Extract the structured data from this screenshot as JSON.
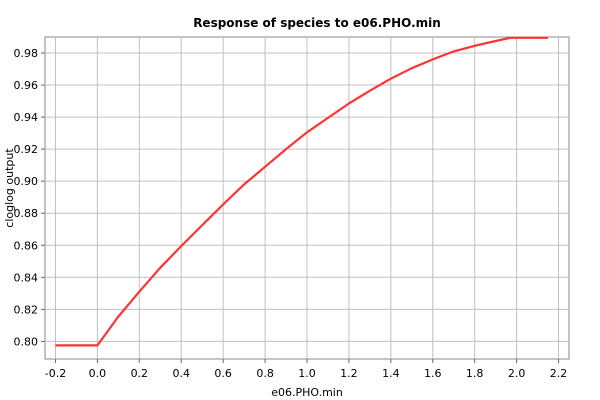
{
  "chart_data": {
    "type": "line",
    "title": "Response of species to e06.PHO.min",
    "xlabel": "e06.PHO.min",
    "ylabel": "cloglog output",
    "xlim": [
      -0.25,
      2.25
    ],
    "ylim": [
      0.789,
      0.99
    ],
    "xticks": [
      -0.2,
      0.0,
      0.2,
      0.4,
      0.6,
      0.8,
      1.0,
      1.2,
      1.4,
      1.6,
      1.8,
      2.0,
      2.2
    ],
    "xtick_labels": [
      "-0.2",
      "0.0",
      "0.2",
      "0.4",
      "0.6",
      "0.8",
      "1.0",
      "1.2",
      "1.4",
      "1.6",
      "1.8",
      "2.0",
      "2.2"
    ],
    "yticks": [
      0.8,
      0.82,
      0.84,
      0.86,
      0.88,
      0.9,
      0.92,
      0.94,
      0.96,
      0.98
    ],
    "ytick_labels": [
      "0.80",
      "0.82",
      "0.84",
      "0.86",
      "0.88",
      "0.90",
      "0.92",
      "0.94",
      "0.96",
      "0.98"
    ],
    "grid": true,
    "series": [
      {
        "color": "#ff3333",
        "x": [
          -0.2,
          0.0,
          0.1,
          0.2,
          0.3,
          0.4,
          0.5,
          0.6,
          0.7,
          0.8,
          0.9,
          1.0,
          1.1,
          1.2,
          1.3,
          1.4,
          1.5,
          1.6,
          1.7,
          1.8,
          1.9,
          1.97,
          2.15
        ],
        "y": [
          0.7975,
          0.7975,
          0.8155,
          0.831,
          0.846,
          0.8595,
          0.8725,
          0.8855,
          0.898,
          0.909,
          0.92,
          0.9305,
          0.9395,
          0.9485,
          0.9565,
          0.964,
          0.9705,
          0.976,
          0.981,
          0.9845,
          0.9875,
          0.9895,
          0.9895
        ]
      }
    ]
  }
}
